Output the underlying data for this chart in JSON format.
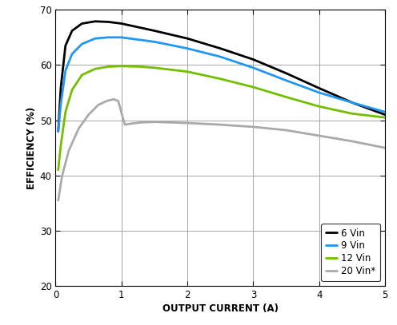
{
  "xlabel": "OUTPUT CURRENT (A)",
  "ylabel": "EFFICIENCY (%)",
  "xlim": [
    0,
    5
  ],
  "ylim": [
    20,
    70
  ],
  "yticks": [
    20,
    30,
    40,
    50,
    60,
    70
  ],
  "xticks": [
    0,
    1,
    2,
    3,
    4,
    5
  ],
  "series": [
    {
      "label": "6 Vin",
      "color": "#000000",
      "linewidth": 2.0,
      "x": [
        0.04,
        0.08,
        0.15,
        0.25,
        0.4,
        0.6,
        0.8,
        1.0,
        1.5,
        2.0,
        2.5,
        3.0,
        3.5,
        4.0,
        4.5,
        5.0
      ],
      "y": [
        48.0,
        56.0,
        63.5,
        66.2,
        67.5,
        67.9,
        67.8,
        67.5,
        66.2,
        64.8,
        63.0,
        61.0,
        58.5,
        55.8,
        53.2,
        51.0
      ]
    },
    {
      "label": "9 Vin",
      "color": "#2196f3",
      "linewidth": 2.0,
      "x": [
        0.04,
        0.08,
        0.15,
        0.25,
        0.4,
        0.6,
        0.8,
        1.0,
        1.5,
        2.0,
        2.5,
        3.0,
        3.5,
        4.0,
        4.5,
        5.0
      ],
      "y": [
        48.0,
        53.0,
        59.0,
        62.0,
        63.8,
        64.8,
        65.0,
        65.0,
        64.2,
        63.0,
        61.5,
        59.5,
        57.2,
        55.0,
        53.2,
        51.5
      ]
    },
    {
      "label": "12 Vin",
      "color": "#72bf00",
      "linewidth": 2.0,
      "x": [
        0.04,
        0.08,
        0.15,
        0.25,
        0.4,
        0.6,
        0.8,
        1.0,
        1.3,
        1.5,
        2.0,
        2.5,
        3.0,
        3.5,
        4.0,
        4.5,
        5.0
      ],
      "y": [
        41.0,
        45.5,
        51.5,
        55.5,
        58.2,
        59.3,
        59.7,
        59.8,
        59.7,
        59.5,
        58.8,
        57.5,
        56.0,
        54.2,
        52.5,
        51.2,
        50.5
      ]
    },
    {
      "label": "20 Vin*",
      "color": "#aaaaaa",
      "linewidth": 2.0,
      "x": [
        0.04,
        0.1,
        0.2,
        0.35,
        0.5,
        0.65,
        0.78,
        0.88,
        0.95,
        1.05,
        1.15,
        1.3,
        1.5,
        2.0,
        2.5,
        3.0,
        3.5,
        4.0,
        4.5,
        5.0
      ],
      "y": [
        35.5,
        40.0,
        44.5,
        48.5,
        51.0,
        52.8,
        53.5,
        53.8,
        53.5,
        49.2,
        49.4,
        49.6,
        49.7,
        49.5,
        49.2,
        48.8,
        48.2,
        47.2,
        46.2,
        45.0
      ]
    }
  ],
  "background_color": "#ffffff",
  "grid_color": "#999999"
}
